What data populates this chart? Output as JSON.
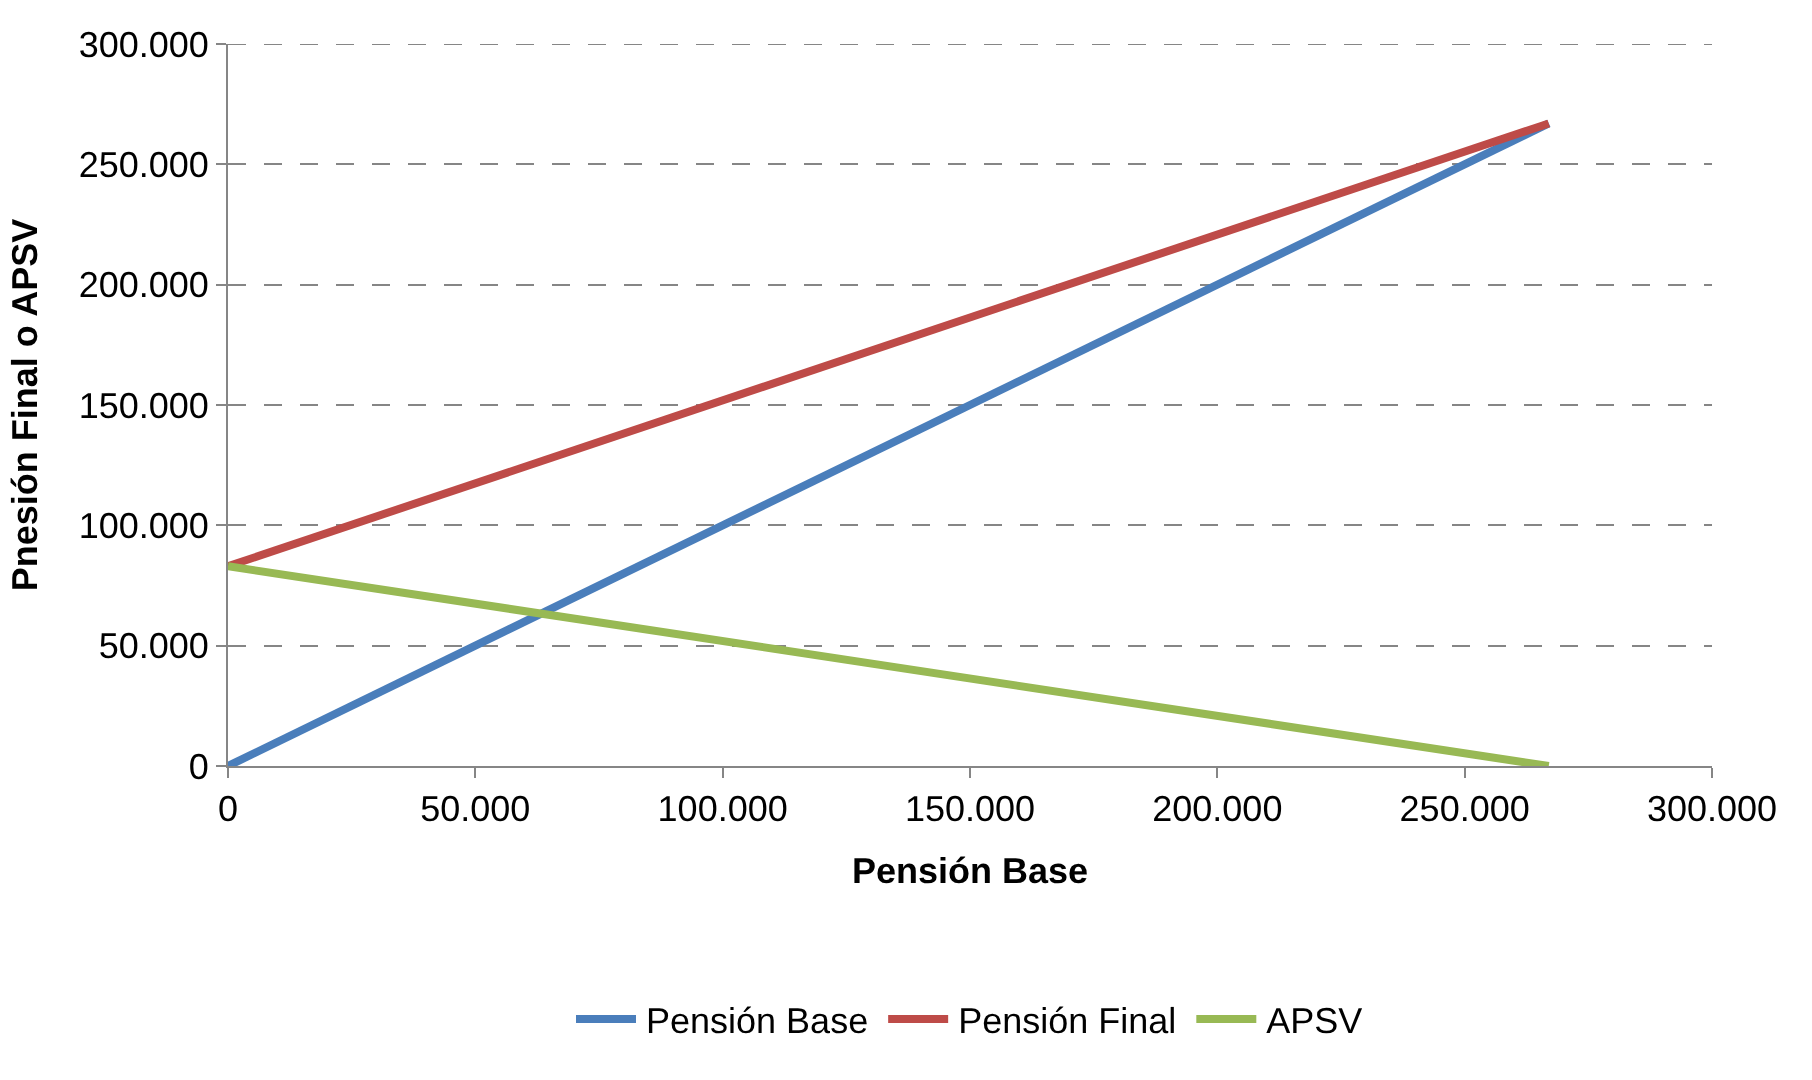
{
  "chart_data": {
    "type": "line",
    "xlabel": "Pensión Base",
    "ylabel": "Pnesión Final o APSV",
    "series": [
      {
        "name": "Pensión Base",
        "color": "#4a7ebb",
        "values": [
          0,
          267000
        ]
      },
      {
        "name": "Pensión Final",
        "color": "#be4b48",
        "values": [
          83000,
          267000
        ]
      },
      {
        "name": "APSV",
        "color": "#98b954",
        "values": [
          83000,
          0
        ]
      }
    ],
    "x": [
      0,
      267000
    ],
    "xlim": [
      0,
      300000
    ],
    "ylim": [
      0,
      300000
    ],
    "xticks": [
      0,
      {
        "value": 50000,
        "label": "50.000"
      },
      {
        "value": 100000,
        "label": "100.000"
      },
      {
        "value": 150000,
        "label": "150.000"
      },
      {
        "value": 200000,
        "label": "200.000"
      },
      {
        "value": 250000,
        "label": "250.000"
      },
      {
        "value": 300000,
        "label": "300.000"
      }
    ],
    "yticks": [
      0,
      {
        "value": 50000,
        "label": "50.000"
      },
      {
        "value": 100000,
        "label": "100.000"
      },
      {
        "value": 150000,
        "label": "150.000"
      },
      {
        "value": 200000,
        "label": "200.000"
      },
      {
        "value": 250000,
        "label": "250.000"
      },
      {
        "value": 300000,
        "label": "300.000"
      }
    ],
    "grid": "y",
    "legend": "bottom",
    "marker": "none",
    "line_style": "solid"
  }
}
